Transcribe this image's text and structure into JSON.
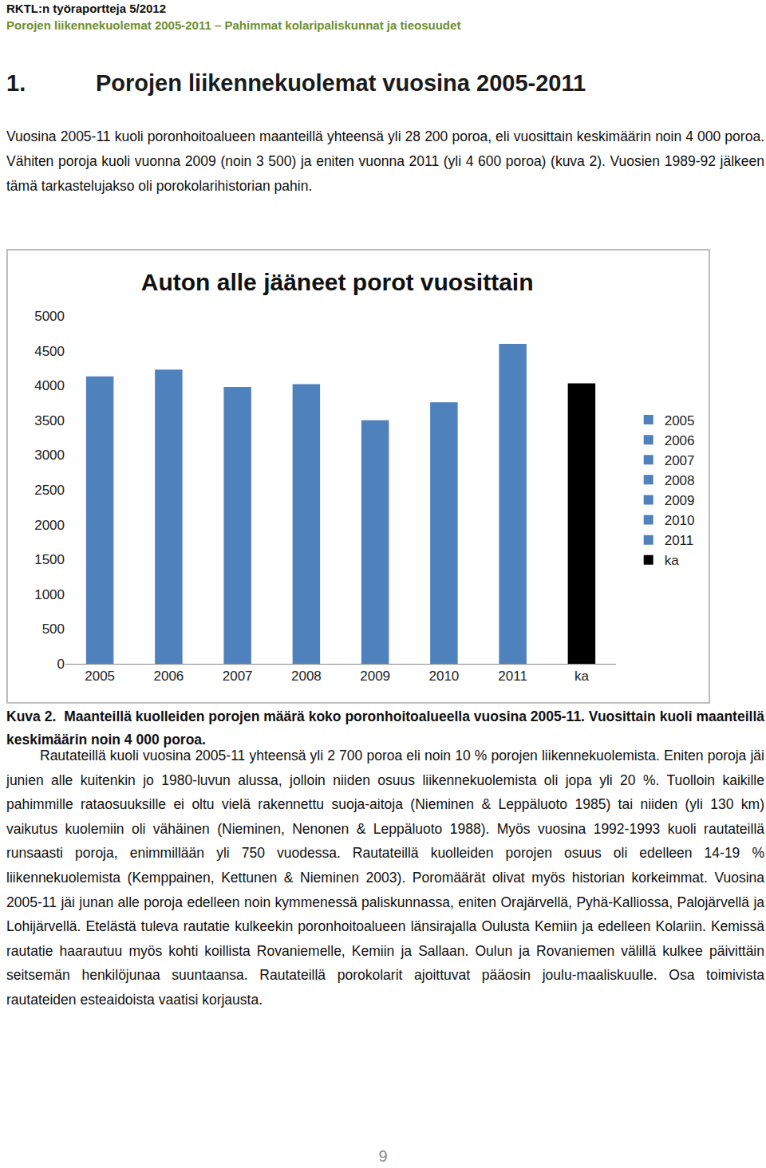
{
  "header": {
    "series": "RKTL:n työraportteja 5/2012",
    "report_title": "Porojen liikennekuolemat 2005-2011 – Pahimmat kolaripaliskunnat ja tieosuudet"
  },
  "heading": {
    "number": "1.",
    "text": "Porojen liikennekuolemat vuosina 2005-2011"
  },
  "intro": "Vuosina 2005-11 kuoli poronhoitoalueen maanteillä yhteensä yli 28 200 poroa, eli vuosittain keskimäärin noin 4 000 poroa. Vähiten poroja kuoli vuonna 2009 (noin 3 500) ja eniten vuonna 2011 (yli 4 600 poroa) (kuva 2). Vuosien 1989-92 jälkeen tämä tarkastelujakso oli porokolarihistorian pahin.",
  "chart_data": {
    "type": "bar",
    "title": "Auton alle jääneet porot vuosittain",
    "categories": [
      "2005",
      "2006",
      "2007",
      "2008",
      "2009",
      "2010",
      "2011",
      "ka"
    ],
    "values": [
      4130,
      4230,
      3980,
      4020,
      3500,
      3760,
      4600,
      4030
    ],
    "colors": [
      "#4f81bd",
      "#4f81bd",
      "#4f81bd",
      "#4f81bd",
      "#4f81bd",
      "#4f81bd",
      "#4f81bd",
      "#000000"
    ],
    "ylim": [
      0,
      5000
    ],
    "yticks": [
      0,
      500,
      1000,
      1500,
      2000,
      2500,
      3000,
      3500,
      4000,
      4500,
      5000
    ],
    "grid": false,
    "legend": "right"
  },
  "caption": {
    "label": "Kuva 2.",
    "text": "Maanteillä kuolleiden porojen määrä koko poronhoitoalueella vuosina 2005-11. Vuosittain kuoli maanteillä keskimäärin noin 4 000 poroa."
  },
  "body": "Rautateillä kuoli vuosina 2005-11 yhteensä yli 2 700 poroa eli noin 10 % porojen liikennekuolemista. Eniten poroja jäi junien alle kuitenkin jo 1980-luvun alussa, jolloin niiden osuus liikennekuolemista oli jopa yli 20 %. Tuolloin kaikille pahimmille rataosuuksille ei oltu vielä rakennettu suoja-aitoja (Nieminen & Leppäluoto 1985) tai niiden (yli 130 km) vaikutus kuolemiin oli vähäinen (Nieminen, Nenonen & Leppäluoto 1988). Myös vuosina 1992-1993 kuoli rautateillä runsaasti poroja, enimmillään yli 750 vuodessa. Rautateillä kuolleiden porojen osuus oli edelleen 14-19 % liikennekuolemista (Kemppainen, Kettunen & Nieminen 2003). Poromäärät olivat myös historian korkeimmat. Vuosina 2005-11 jäi junan alle poroja edelleen noin kymmenessä paliskunnassa, eniten Orajärvellä, Pyhä-Kalliossa, Palojärvellä ja Lohijärvellä. Etelästä tuleva rautatie kulkeekin poronhoitoalueen länsirajalla Oulusta Kemiin ja edelleen Kolariin. Kemissä rautatie haarautuu myös kohti koillista Rovaniemelle, Kemiin ja Sallaan. Oulun ja Rovaniemen välillä kulkee päivittäin seitsemän henkilöjunaa suuntaansa. Rautateillä porokolarit ajoittuvat pääosin joulu-maaliskuulle. Osa toimivista rautateiden esteaidoista vaatisi korjausta.",
  "page_number": "9"
}
